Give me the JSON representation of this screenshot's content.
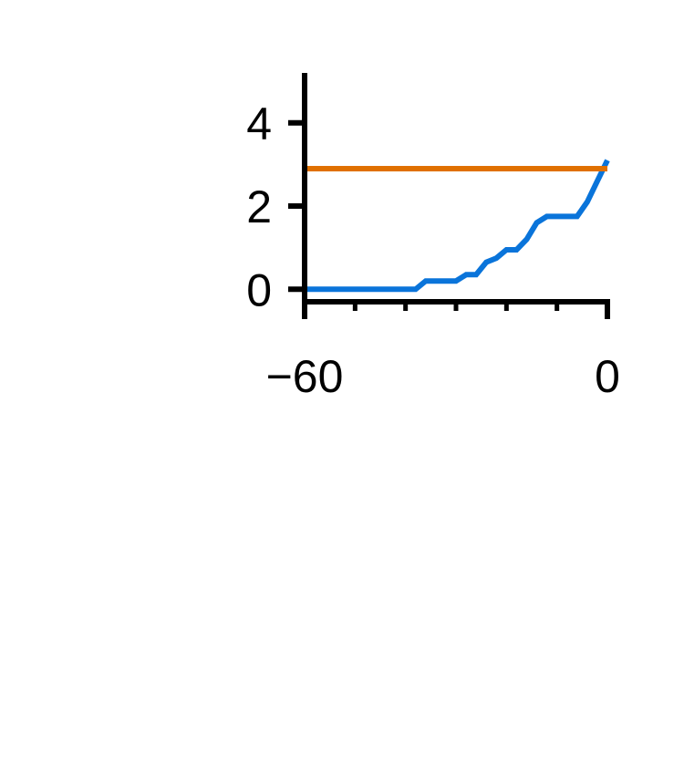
{
  "chart_data": {
    "type": "line",
    "title": "",
    "xlabel": "",
    "ylabel": "",
    "xlim": [
      -60,
      0
    ],
    "ylim": [
      -0.3,
      5.2
    ],
    "x_ticks": [
      -60,
      0
    ],
    "x_tick_labels": [
      "−60",
      "0"
    ],
    "x_minor_ticks": [
      -50,
      -40,
      -30,
      -20,
      -10
    ],
    "y_ticks": [
      0,
      2,
      4
    ],
    "y_tick_labels": [
      "0",
      "2",
      "4"
    ],
    "grid": false,
    "legend": "none",
    "series": [
      {
        "color": "#0A74DA",
        "points": [
          [
            -60,
            0.0
          ],
          [
            -38,
            0.0
          ],
          [
            -36,
            0.2
          ],
          [
            -30,
            0.2
          ],
          [
            -28,
            0.35
          ],
          [
            -26,
            0.35
          ],
          [
            -24,
            0.65
          ],
          [
            -22,
            0.75
          ],
          [
            -20,
            0.95
          ],
          [
            -18,
            0.95
          ],
          [
            -16,
            1.2
          ],
          [
            -14,
            1.6
          ],
          [
            -12,
            1.75
          ],
          [
            -6,
            1.75
          ],
          [
            -4,
            2.1
          ],
          [
            -2,
            2.6
          ],
          [
            0,
            3.1
          ]
        ]
      },
      {
        "color": "#E07000",
        "points": [
          [
            -60,
            2.9
          ],
          [
            0,
            2.9
          ]
        ]
      }
    ]
  }
}
